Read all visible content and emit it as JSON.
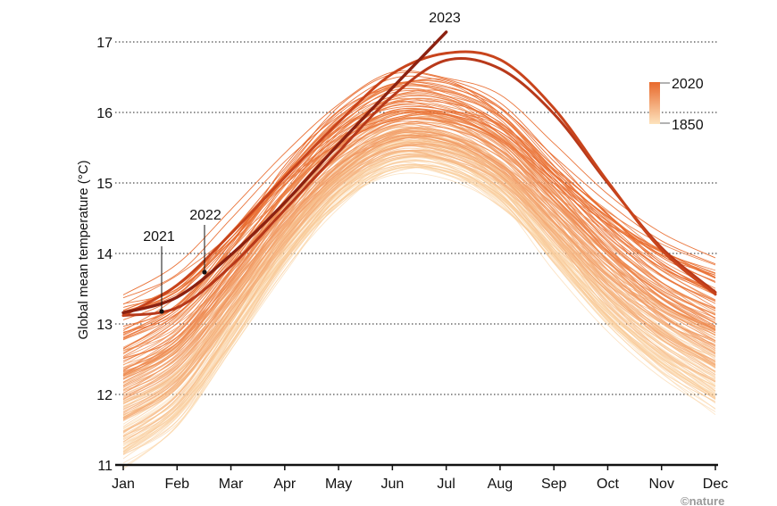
{
  "chart_data": {
    "type": "line",
    "ylabel": "Global mean temperature (°C)",
    "ylim": [
      11,
      17
    ],
    "yticks": [
      "11",
      "12",
      "13",
      "14",
      "15",
      "16",
      "17"
    ],
    "categories": [
      "Jan",
      "Feb",
      "Mar",
      "Apr",
      "May",
      "Jun",
      "Jul",
      "Aug",
      "Sep",
      "Oct",
      "Nov",
      "Dec"
    ],
    "grid": "horizontal dotted",
    "colors": {
      "old": "#fbd7a8",
      "recent": "#e8692c",
      "highlight_2022": "#c8441c",
      "highlight_2021": "#b8391a",
      "highlight_2023": "#8c2110"
    },
    "legend": {
      "max_year": "2020",
      "min_year": "1850",
      "placement": "top-right"
    },
    "background_years": {
      "from": 1850,
      "to": 2020
    },
    "series": [
      {
        "name": "2023",
        "values": [
          13.16,
          13.38,
          13.98,
          14.72,
          15.55,
          16.35,
          17.14,
          null,
          null,
          null,
          null,
          null
        ]
      },
      {
        "name": "2022",
        "values": [
          13.12,
          13.55,
          14.28,
          15.08,
          15.86,
          16.55,
          16.84,
          16.75,
          16.06,
          15.02,
          14.05,
          13.42
        ]
      },
      {
        "name": "2021",
        "values": [
          13.12,
          13.23,
          13.82,
          14.62,
          15.44,
          16.23,
          16.74,
          16.62,
          15.98,
          15.0,
          14.08,
          13.45
        ]
      }
    ]
  },
  "annotations": {
    "label_2023": "2023",
    "label_2022": "2022",
    "label_2021": "2021"
  },
  "credit": "©nature"
}
